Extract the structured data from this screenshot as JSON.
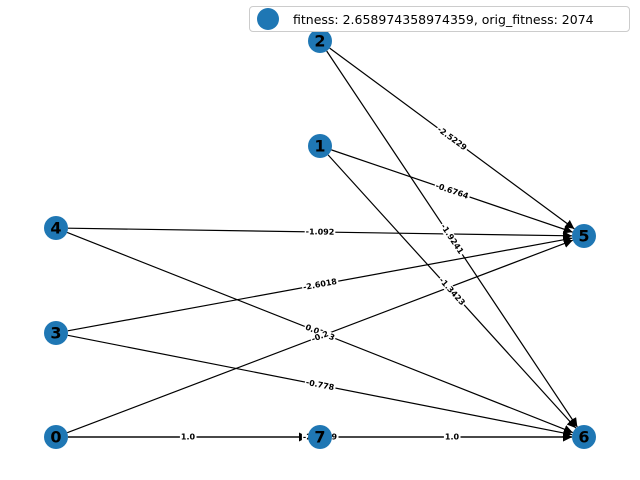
{
  "legend": {
    "text": "fitness: 2.658974358974359, orig_fitness: 2074",
    "marker_color": "#1f77b4"
  },
  "colors": {
    "node": "#1f77b4",
    "edge": "#000000",
    "label_bg": "#ffffff"
  },
  "nodes": [
    {
      "id": "0",
      "label": "0"
    },
    {
      "id": "1",
      "label": "1"
    },
    {
      "id": "2",
      "label": "2"
    },
    {
      "id": "3",
      "label": "3"
    },
    {
      "id": "4",
      "label": "4"
    },
    {
      "id": "5",
      "label": "5"
    },
    {
      "id": "6",
      "label": "6"
    },
    {
      "id": "7",
      "label": "7"
    }
  ],
  "edges": [
    {
      "source": "2",
      "target": "5",
      "weight": "-2.5229"
    },
    {
      "source": "2",
      "target": "6",
      "weight": "-1.9241"
    },
    {
      "source": "1",
      "target": "5",
      "weight": "-0.6764"
    },
    {
      "source": "1",
      "target": "6",
      "weight": "-1.3423"
    },
    {
      "source": "4",
      "target": "5",
      "weight": "-1.092"
    },
    {
      "source": "4",
      "target": "6",
      "weight": "0.0193"
    },
    {
      "source": "3",
      "target": "5",
      "weight": "-2.6018"
    },
    {
      "source": "3",
      "target": "6",
      "weight": "-0.778"
    },
    {
      "source": "0",
      "target": "5",
      "weight": "-0.2"
    },
    {
      "source": "0",
      "target": "7",
      "weight": "1.0"
    },
    {
      "source": "0",
      "target": "6",
      "weight": "-2.7219"
    },
    {
      "source": "7",
      "target": "6",
      "weight": "1.0"
    }
  ]
}
